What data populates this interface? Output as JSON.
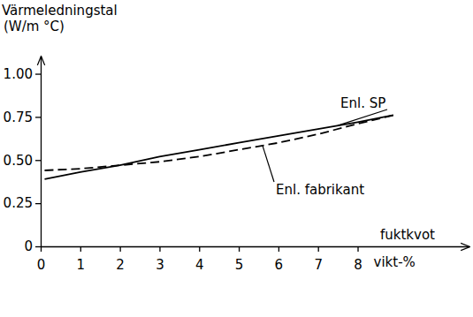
{
  "chart_data": {
    "type": "line",
    "y_label": [
      "Värmeledningstal",
      "(W/m °C)"
    ],
    "x_label": [
      "fuktkvot",
      "vikt-%"
    ],
    "x": [
      0.1,
      1,
      2,
      3,
      4,
      5,
      6,
      7,
      8,
      8.9
    ],
    "series": [
      {
        "name": "Enl. SP",
        "color": "#000000",
        "line_style": "solid",
        "values": [
          0.39,
          0.43,
          0.47,
          0.52,
          0.56,
          0.6,
          0.64,
          0.68,
          0.72,
          0.76
        ]
      },
      {
        "name": "Enl. fabrikant",
        "color": "#000000",
        "line_style": "dashed",
        "values": [
          0.44,
          0.45,
          0.47,
          0.49,
          0.52,
          0.56,
          0.6,
          0.65,
          0.71,
          0.76
        ]
      }
    ],
    "xlim": [
      0,
      10.8
    ],
    "ylim": [
      0,
      1.1
    ],
    "xticks": [
      0,
      1,
      2,
      3,
      4,
      5,
      6,
      7,
      8
    ],
    "yticks": [
      0,
      0.25,
      {
        "value": 0.5,
        "label": "0.50"
      },
      0.75,
      {
        "value": 1,
        "label": "1.00"
      }
    ],
    "grid": false
  }
}
